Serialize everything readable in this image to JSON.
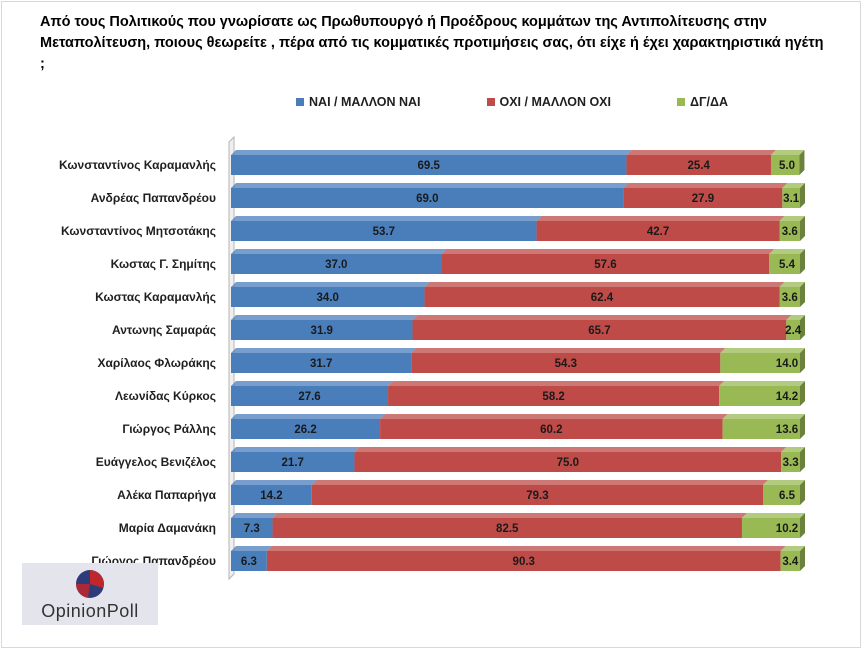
{
  "title": "Από τους Πολιτικούς που γνωρίσατε ως Πρωθυπουργό ή Προέδρους κομμάτων της Αντιπολίτευσης στην Μεταπολίτευση, ποιους θεωρείτε , πέρα από τις κομματικές προτιμήσεις σας, ότι είχε ή έχει χαρακτηριστικά ηγέτη ;",
  "logo_text": "OpinionPoll",
  "chart_data": {
    "type": "bar",
    "orientation": "horizontal",
    "stacked": true,
    "percent_stacked": true,
    "legend_position": "top",
    "categories": [
      "Κωνσταντίνος Καραμανλής",
      "Ανδρέας Παπανδρέου",
      "Κωνσταντίνος Μητσοτάκης",
      "Κωστας Γ. Σημίτης",
      "Κωστας   Καραμανλής",
      "Αντωνης Σαμαράς",
      "Χαρίλαος Φλωράκης",
      "Λεωνίδας Κύρκος",
      "Γιώργος Ράλλης",
      "Ευάγγελος Βενιζέλος",
      "Αλέκα Παπαρήγα",
      "Μαρία Δαμανάκη",
      "Γιώργος Παπανδρέου"
    ],
    "series": [
      {
        "name": "ΝΑΙ / ΜΑΛΛΟΝ ΝΑΙ",
        "color": "#4a7ebb",
        "values": [
          69.5,
          69.0,
          53.7,
          37.0,
          34.0,
          31.9,
          31.7,
          27.6,
          26.2,
          21.7,
          14.2,
          7.3,
          6.3
        ]
      },
      {
        "name": "ΟΧΙ / ΜΑΛΛΟΝ ΟΧΙ",
        "color": "#be4b48",
        "values": [
          25.4,
          27.9,
          42.7,
          57.6,
          62.4,
          65.7,
          54.3,
          58.2,
          60.2,
          75.0,
          79.3,
          82.5,
          90.3
        ]
      },
      {
        "name": "ΔΓ/ΔΑ",
        "color": "#98b954",
        "values": [
          5.0,
          3.1,
          3.6,
          5.4,
          3.6,
          2.4,
          14.0,
          14.2,
          13.6,
          3.3,
          6.5,
          10.2,
          3.4
        ]
      }
    ],
    "grid": false
  }
}
